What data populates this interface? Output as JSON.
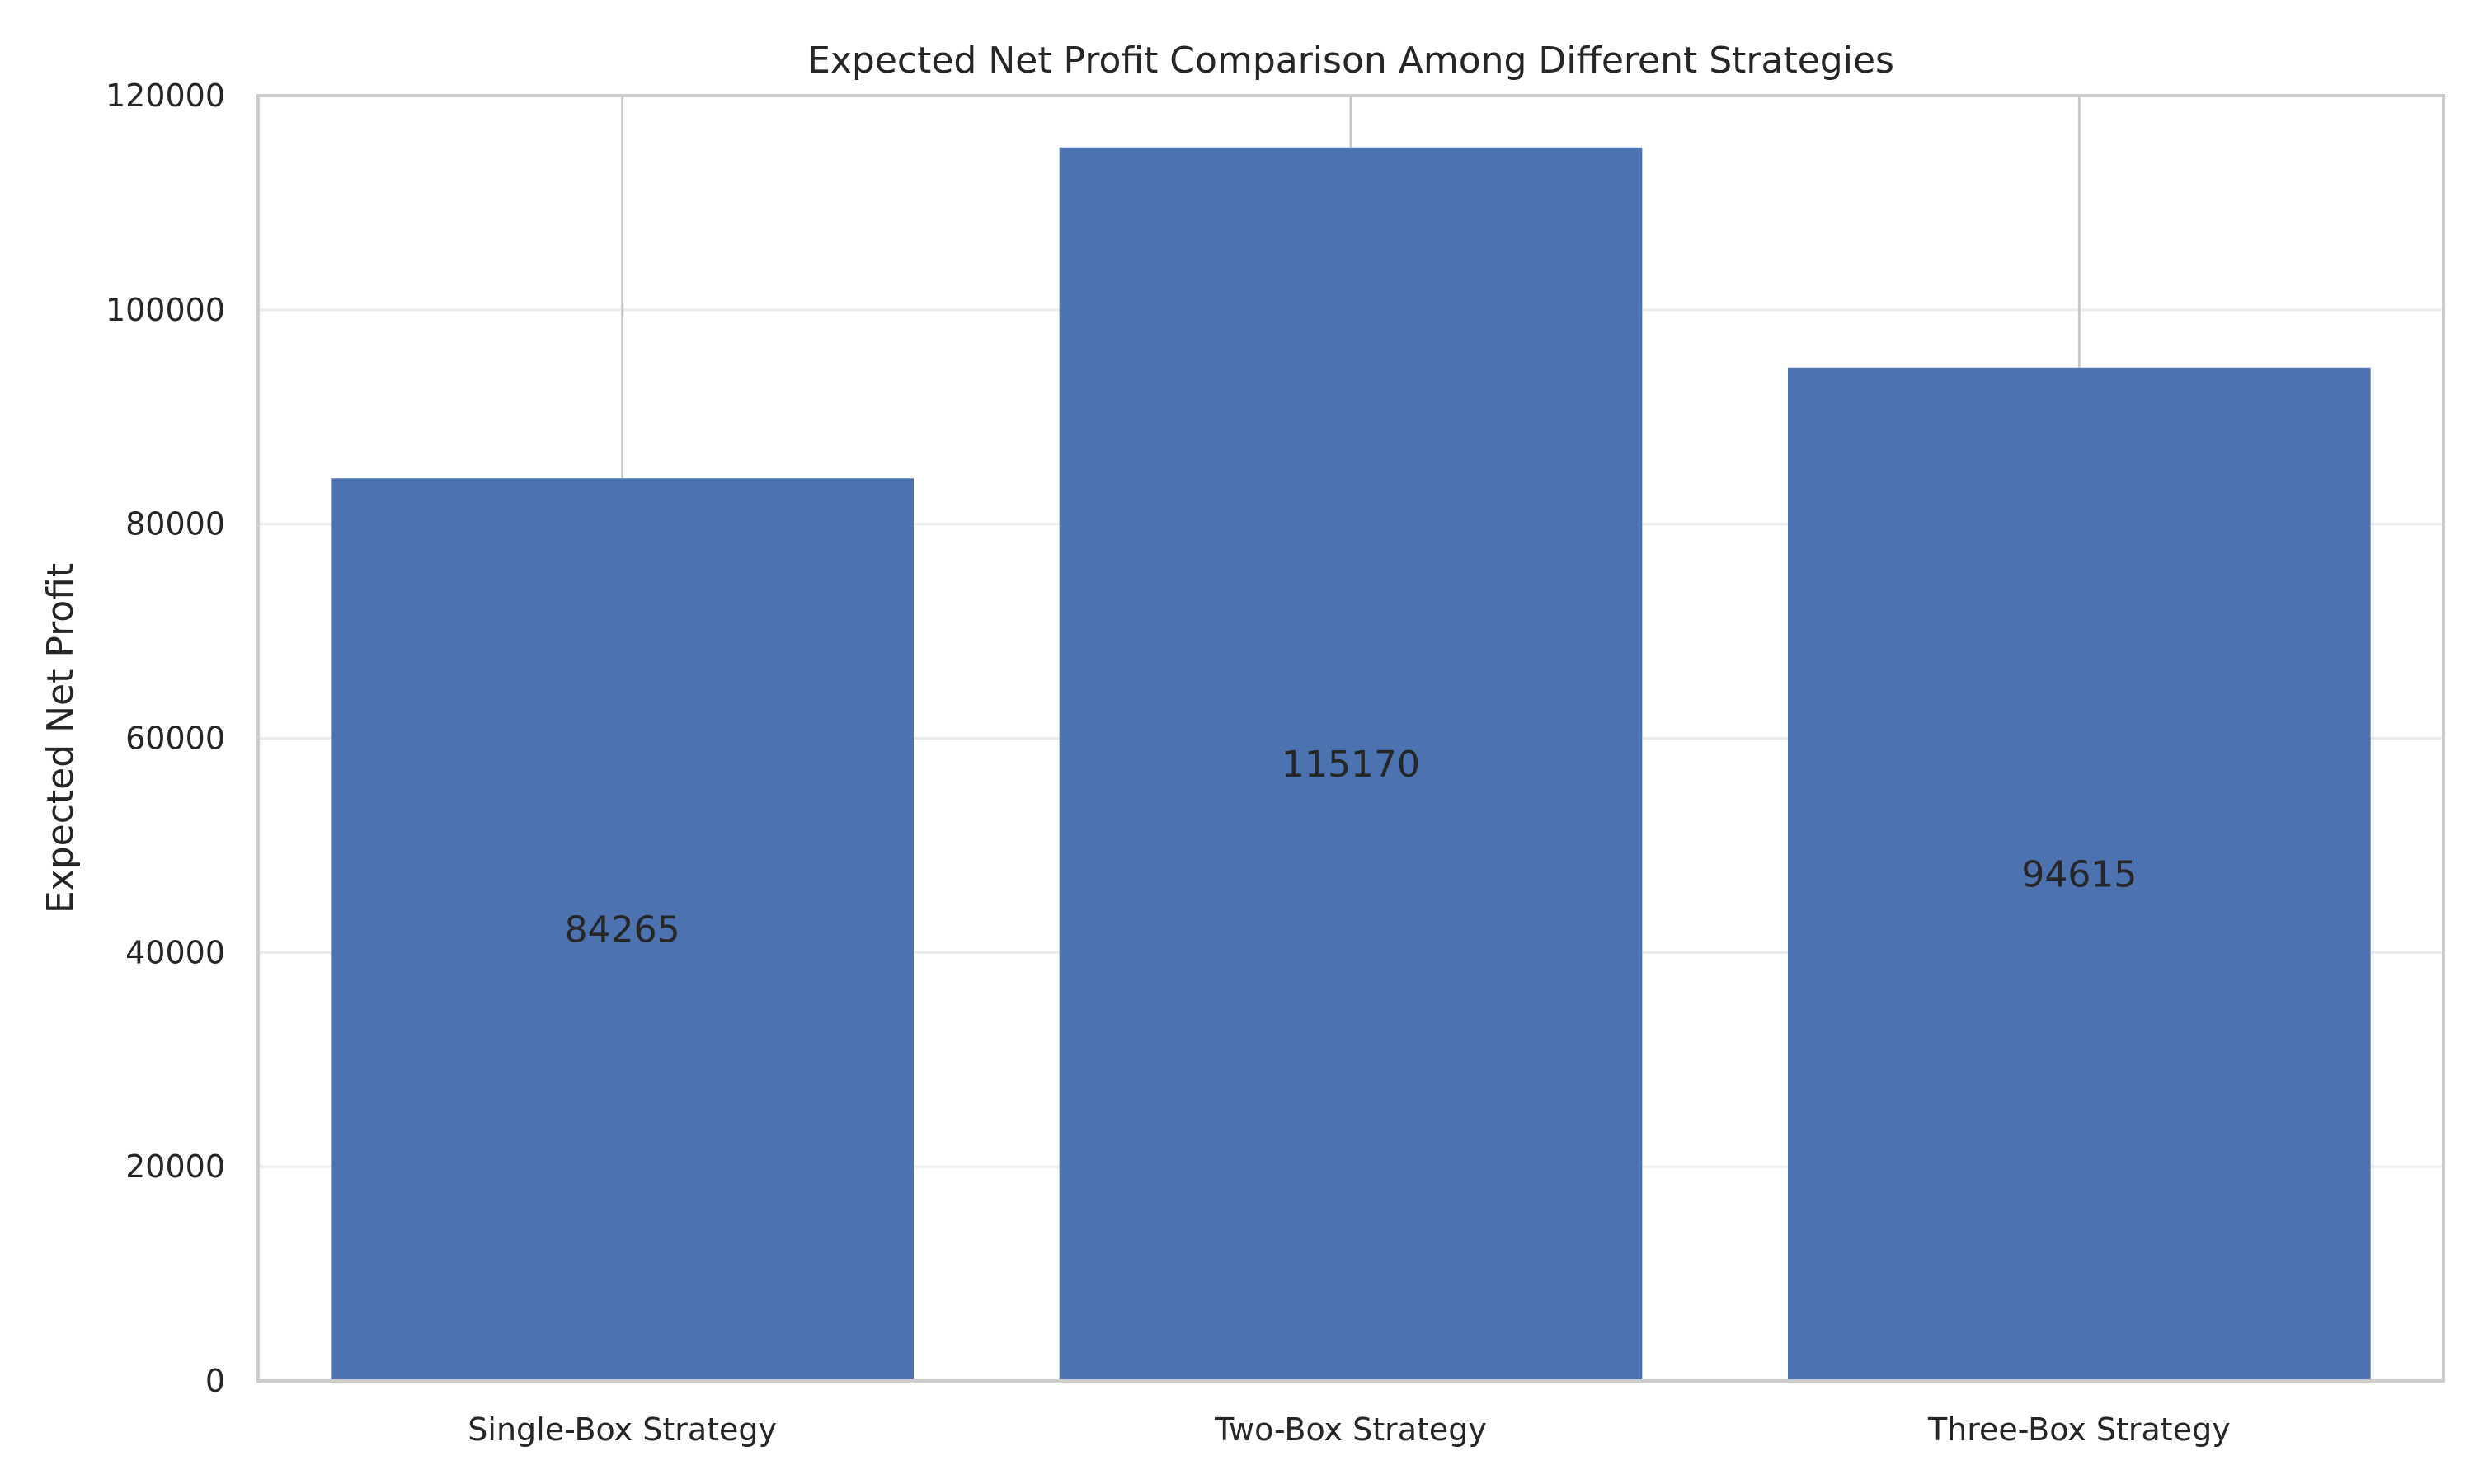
{
  "chart_data": {
    "type": "bar",
    "title": "Expected Net Profit Comparison Among Different Strategies",
    "xlabel": "",
    "ylabel": "Expected Net Profit",
    "categories": [
      "Single-Box Strategy",
      "Two-Box Strategy",
      "Three-Box Strategy"
    ],
    "values": [
      84265,
      115170,
      94615
    ],
    "data_labels": [
      "84265",
      "115170",
      "94615"
    ],
    "error_bar_upper": [
      120000,
      120000,
      120000
    ],
    "ylim": [
      0,
      120000
    ],
    "yticks": [
      0,
      20000,
      40000,
      60000,
      80000,
      100000,
      120000
    ],
    "ytick_labels": [
      "0",
      "20000",
      "40000",
      "60000",
      "80000",
      "100000",
      "120000"
    ],
    "grid": "horizontal",
    "legend": "none",
    "colors": {
      "bar": "#4c72b0",
      "error_line": "#c8c8c8",
      "grid": "#ebebeb",
      "frame": "#cccccc",
      "text": "#262626"
    }
  }
}
